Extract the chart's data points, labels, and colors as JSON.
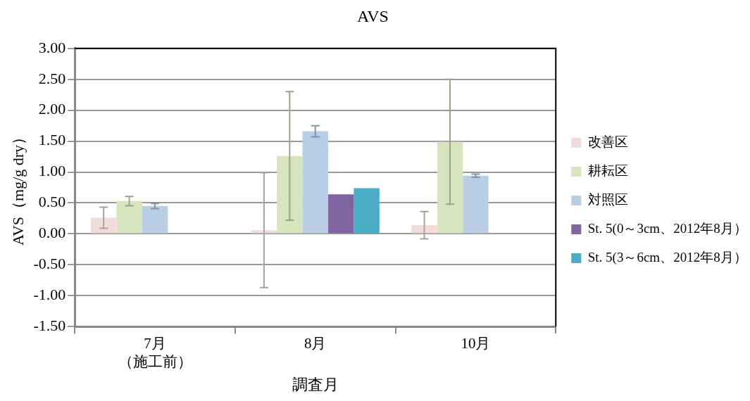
{
  "chart_data": {
    "type": "bar",
    "title": "AVS",
    "xlabel": "調査月",
    "ylabel": "AVS（mg/g dry）",
    "categories": [
      "7月（施工前）",
      "8月",
      "10月"
    ],
    "series": [
      {
        "name": "改善区",
        "color": "#f2dcdb",
        "values": [
          0.26,
          0.06,
          0.14
        ],
        "errors": [
          0.17,
          0.93,
          0.22
        ]
      },
      {
        "name": "耕耘区",
        "color": "#d7e4bd",
        "values": [
          0.53,
          1.26,
          1.49
        ],
        "errors": [
          0.075,
          1.04,
          1.01
        ]
      },
      {
        "name": "対照区",
        "color": "#b9cde5",
        "values": [
          0.45,
          1.66,
          0.94
        ],
        "errors": [
          0.04,
          0.09,
          0.025
        ]
      },
      {
        "name": "St. 5(0～3cm、2012年8月）",
        "color": "#8064a2",
        "values": [
          null,
          0.64,
          null
        ]
      },
      {
        "name": "St. 5(3～6cm、2012年8月）",
        "color": "#4bacc6",
        "values": [
          null,
          0.74,
          null
        ]
      }
    ],
    "ylim": [
      -1.5,
      3.0
    ],
    "yticks": [
      {
        "value": -1.5,
        "label": "-1.50"
      },
      {
        "value": -1.0,
        "label": "-1.00"
      },
      {
        "value": -0.5,
        "label": "-0.50"
      },
      {
        "value": 0,
        "label": "0.00"
      },
      {
        "value": 0.5,
        "label": "0.50"
      },
      {
        "value": 1.0,
        "label": "1.00"
      },
      {
        "value": 1.5,
        "label": "1.50"
      },
      {
        "value": 2.0,
        "label": "2.00"
      },
      {
        "value": 2.5,
        "label": "2.50"
      },
      {
        "value": 3.0,
        "label": "3.00"
      }
    ],
    "grid": "y",
    "legend": "right"
  }
}
